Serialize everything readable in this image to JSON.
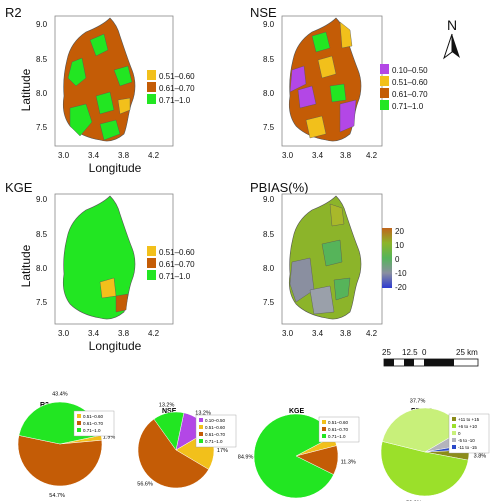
{
  "maps": {
    "r2": {
      "title": "R2",
      "legend": [
        {
          "label": "0.51–0.60",
          "color": "#f2c01b"
        },
        {
          "label": "0.61–0.70",
          "color": "#c45c06"
        },
        {
          "label": "0.71–1.0",
          "color": "#22e622"
        }
      ]
    },
    "nse": {
      "title": "NSE",
      "legend": [
        {
          "label": "0.10–0.50",
          "color": "#b347e6"
        },
        {
          "label": "0.51–0.60",
          "color": "#f2c01b"
        },
        {
          "label": "0.61–0.70",
          "color": "#c45c06"
        },
        {
          "label": "0.71–1.0",
          "color": "#22e622"
        }
      ]
    },
    "kge": {
      "title": "KGE",
      "legend": [
        {
          "label": "0.51–0.60",
          "color": "#f2c01b"
        },
        {
          "label": "0.61–0.70",
          "color": "#c45c06"
        },
        {
          "label": "0.71–1.0",
          "color": "#22e622"
        }
      ]
    },
    "pbias": {
      "title": "PBIAS(%)",
      "colorbar_ticks": [
        "20",
        "10",
        "0",
        "-10",
        "-20"
      ],
      "colors": [
        "#c0641b",
        "#8cb42a",
        "#56b45a",
        "#8a8fa0",
        "#2d3ad0"
      ]
    }
  },
  "axes": {
    "ylabel": "Latitude",
    "xlabel": "Longitude",
    "yticks": [
      "9.0",
      "8.5",
      "8.0",
      "7.5"
    ],
    "xticks": [
      "3.0",
      "3.4",
      "3.8",
      "4.2"
    ]
  },
  "north_arrow": "N",
  "scale_bar": {
    "labels": [
      "25",
      "12.5",
      "0",
      "25 km"
    ]
  },
  "chart_data": [
    {
      "type": "pie",
      "title": "R2",
      "categories": [
        "0.51–0.60",
        "0.61–0.70",
        "0.71–1.0"
      ],
      "values": [
        1.9,
        54.7,
        43.4
      ],
      "data_labels": [
        "1.9%",
        "54.7%",
        "43.4%"
      ],
      "colors": [
        "#f2c01b",
        "#c45c06",
        "#22e622"
      ],
      "legend_placement": "top-right"
    },
    {
      "type": "pie",
      "title": "NSE",
      "categories": [
        "0.10–0.50",
        "0.51–0.60",
        "0.61–0.70",
        "0.71–1.0"
      ],
      "values": [
        13.2,
        17,
        56.6,
        13.2
      ],
      "data_labels": [
        "13.2%",
        "17%",
        "56.6%",
        "13.2%"
      ],
      "colors": [
        "#b347e6",
        "#f2c01b",
        "#c45c06",
        "#22e622"
      ],
      "legend_placement": "top-right"
    },
    {
      "type": "pie",
      "title": "KGE",
      "categories": [
        "0.51–0.60",
        "0.61–0.70",
        "0.71–1.0"
      ],
      "values": [
        3.8,
        11.3,
        84.9
      ],
      "data_labels": [
        "3.8%",
        "11.3%",
        "84.9%"
      ],
      "colors": [
        "#f2c01b",
        "#c45c06",
        "#22e622"
      ],
      "legend_placement": "top-right"
    },
    {
      "type": "pie",
      "title": "PBIAS",
      "categories": [
        "+11 to +15",
        "+6 to +10",
        "0",
        "-5 to -10",
        "-11 to -15"
      ],
      "values": [
        3.8,
        50.9,
        37.7,
        5.7,
        1.9
      ],
      "data_labels": [
        "3.8%",
        "50.9%",
        "37.7%",
        "5.7%",
        "1.9%"
      ],
      "colors": [
        "#8c8c1a",
        "#9be02a",
        "#c8f07a",
        "#b4b4bc",
        "#2a48c8"
      ],
      "legend_placement": "top-right"
    }
  ]
}
